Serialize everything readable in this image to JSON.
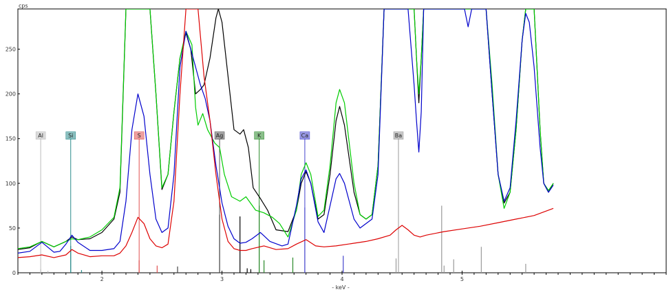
{
  "chart_data": {
    "type": "line",
    "ylabel": "cps",
    "xlabel": "- keV -",
    "xlim": [
      1.3,
      6.7
    ],
    "ylim": [
      0,
      295
    ],
    "x_ticks": [
      2,
      3,
      4,
      5
    ],
    "y_ticks": [
      0,
      50,
      100,
      150,
      200,
      250
    ],
    "grid": false,
    "series": [
      {
        "color": "#000000",
        "points": [
          [
            1.3,
            26
          ],
          [
            1.4,
            28
          ],
          [
            1.5,
            35
          ],
          [
            1.6,
            29
          ],
          [
            1.7,
            35
          ],
          [
            1.75,
            40
          ],
          [
            1.8,
            37
          ],
          [
            1.9,
            38
          ],
          [
            2.0,
            45
          ],
          [
            2.1,
            60
          ],
          [
            2.15,
            90
          ],
          [
            2.2,
            295
          ],
          [
            2.3,
            295
          ],
          [
            2.4,
            295
          ],
          [
            2.45,
            200
          ],
          [
            2.5,
            93
          ],
          [
            2.55,
            110
          ],
          [
            2.6,
            180
          ],
          [
            2.65,
            240
          ],
          [
            2.7,
            268
          ],
          [
            2.74,
            250
          ],
          [
            2.78,
            200
          ],
          [
            2.82,
            205
          ],
          [
            2.85,
            210
          ],
          [
            2.9,
            240
          ],
          [
            2.95,
            285
          ],
          [
            2.97,
            295
          ],
          [
            3.0,
            280
          ],
          [
            3.05,
            220
          ],
          [
            3.1,
            160
          ],
          [
            3.15,
            155
          ],
          [
            3.18,
            160
          ],
          [
            3.22,
            140
          ],
          [
            3.26,
            95
          ],
          [
            3.32,
            83
          ],
          [
            3.38,
            70
          ],
          [
            3.45,
            48
          ],
          [
            3.55,
            46
          ],
          [
            3.62,
            70
          ],
          [
            3.66,
            100
          ],
          [
            3.7,
            113
          ],
          [
            3.74,
            100
          ],
          [
            3.8,
            60
          ],
          [
            3.85,
            65
          ],
          [
            3.9,
            110
          ],
          [
            3.95,
            170
          ],
          [
            3.98,
            186
          ],
          [
            4.02,
            165
          ],
          [
            4.1,
            90
          ],
          [
            4.15,
            65
          ],
          [
            4.2,
            60
          ],
          [
            4.25,
            65
          ],
          [
            4.3,
            120
          ],
          [
            4.35,
            295
          ],
          [
            4.6,
            295
          ],
          [
            4.62,
            240
          ],
          [
            4.64,
            190
          ],
          [
            4.66,
            240
          ],
          [
            4.68,
            295
          ],
          [
            5.2,
            295
          ],
          [
            5.25,
            200
          ],
          [
            5.3,
            110
          ],
          [
            5.35,
            78
          ],
          [
            5.4,
            90
          ],
          [
            5.45,
            160
          ],
          [
            5.5,
            260
          ],
          [
            5.53,
            295
          ],
          [
            5.6,
            295
          ],
          [
            5.65,
            160
          ],
          [
            5.68,
            100
          ],
          [
            5.72,
            90
          ],
          [
            5.76,
            100
          ]
        ]
      },
      {
        "color": "#00cc00",
        "points": [
          [
            1.3,
            27
          ],
          [
            1.4,
            29
          ],
          [
            1.5,
            35
          ],
          [
            1.6,
            29
          ],
          [
            1.7,
            35
          ],
          [
            1.75,
            38
          ],
          [
            1.8,
            37
          ],
          [
            1.9,
            40
          ],
          [
            2.0,
            48
          ],
          [
            2.1,
            62
          ],
          [
            2.15,
            95
          ],
          [
            2.2,
            295
          ],
          [
            2.3,
            295
          ],
          [
            2.4,
            295
          ],
          [
            2.45,
            200
          ],
          [
            2.5,
            95
          ],
          [
            2.55,
            110
          ],
          [
            2.6,
            180
          ],
          [
            2.65,
            240
          ],
          [
            2.7,
            270
          ],
          [
            2.75,
            255
          ],
          [
            2.78,
            185
          ],
          [
            2.8,
            165
          ],
          [
            2.84,
            178
          ],
          [
            2.88,
            160
          ],
          [
            2.94,
            145
          ],
          [
            2.98,
            140
          ],
          [
            3.02,
            110
          ],
          [
            3.08,
            85
          ],
          [
            3.15,
            80
          ],
          [
            3.2,
            85
          ],
          [
            3.28,
            70
          ],
          [
            3.35,
            67
          ],
          [
            3.42,
            62
          ],
          [
            3.48,
            55
          ],
          [
            3.55,
            40
          ],
          [
            3.62,
            70
          ],
          [
            3.66,
            110
          ],
          [
            3.7,
            123
          ],
          [
            3.74,
            110
          ],
          [
            3.8,
            63
          ],
          [
            3.85,
            70
          ],
          [
            3.9,
            120
          ],
          [
            3.95,
            190
          ],
          [
            3.98,
            205
          ],
          [
            4.02,
            190
          ],
          [
            4.1,
            100
          ],
          [
            4.15,
            65
          ],
          [
            4.2,
            60
          ],
          [
            4.25,
            65
          ],
          [
            4.3,
            120
          ],
          [
            4.35,
            295
          ],
          [
            4.6,
            295
          ],
          [
            4.62,
            240
          ],
          [
            4.64,
            200
          ],
          [
            4.66,
            240
          ],
          [
            4.68,
            295
          ],
          [
            5.2,
            295
          ],
          [
            5.25,
            210
          ],
          [
            5.3,
            110
          ],
          [
            5.35,
            72
          ],
          [
            5.4,
            90
          ],
          [
            5.45,
            160
          ],
          [
            5.5,
            260
          ],
          [
            5.53,
            295
          ],
          [
            5.6,
            295
          ],
          [
            5.65,
            160
          ],
          [
            5.68,
            100
          ],
          [
            5.72,
            92
          ],
          [
            5.76,
            100
          ]
        ]
      },
      {
        "color": "#0000cc",
        "points": [
          [
            1.3,
            22
          ],
          [
            1.4,
            24
          ],
          [
            1.5,
            34
          ],
          [
            1.6,
            23
          ],
          [
            1.65,
            24
          ],
          [
            1.7,
            32
          ],
          [
            1.75,
            42
          ],
          [
            1.8,
            34
          ],
          [
            1.9,
            25
          ],
          [
            2.0,
            25
          ],
          [
            2.1,
            27
          ],
          [
            2.15,
            35
          ],
          [
            2.2,
            80
          ],
          [
            2.25,
            160
          ],
          [
            2.3,
            200
          ],
          [
            2.35,
            175
          ],
          [
            2.4,
            110
          ],
          [
            2.45,
            60
          ],
          [
            2.5,
            45
          ],
          [
            2.55,
            50
          ],
          [
            2.6,
            110
          ],
          [
            2.65,
            230
          ],
          [
            2.7,
            270
          ],
          [
            2.74,
            250
          ],
          [
            2.78,
            230
          ],
          [
            2.82,
            210
          ],
          [
            2.86,
            195
          ],
          [
            2.9,
            170
          ],
          [
            2.95,
            120
          ],
          [
            3.0,
            78
          ],
          [
            3.05,
            52
          ],
          [
            3.1,
            38
          ],
          [
            3.15,
            33
          ],
          [
            3.2,
            34
          ],
          [
            3.25,
            38
          ],
          [
            3.32,
            45
          ],
          [
            3.4,
            35
          ],
          [
            3.5,
            30
          ],
          [
            3.55,
            32
          ],
          [
            3.62,
            75
          ],
          [
            3.66,
            105
          ],
          [
            3.7,
            115
          ],
          [
            3.74,
            100
          ],
          [
            3.8,
            57
          ],
          [
            3.85,
            45
          ],
          [
            3.9,
            75
          ],
          [
            3.95,
            105
          ],
          [
            3.98,
            111
          ],
          [
            4.02,
            100
          ],
          [
            4.1,
            60
          ],
          [
            4.15,
            50
          ],
          [
            4.2,
            55
          ],
          [
            4.25,
            60
          ],
          [
            4.3,
            110
          ],
          [
            4.35,
            295
          ],
          [
            4.55,
            295
          ],
          [
            4.6,
            210
          ],
          [
            4.62,
            170
          ],
          [
            4.64,
            135
          ],
          [
            4.66,
            180
          ],
          [
            4.68,
            295
          ],
          [
            5.02,
            295
          ],
          [
            5.05,
            275
          ],
          [
            5.08,
            295
          ],
          [
            5.2,
            295
          ],
          [
            5.25,
            200
          ],
          [
            5.3,
            110
          ],
          [
            5.35,
            80
          ],
          [
            5.4,
            95
          ],
          [
            5.45,
            170
          ],
          [
            5.5,
            260
          ],
          [
            5.53,
            290
          ],
          [
            5.56,
            280
          ],
          [
            5.6,
            230
          ],
          [
            5.65,
            140
          ],
          [
            5.68,
            100
          ],
          [
            5.72,
            90
          ],
          [
            5.76,
            98
          ]
        ]
      },
      {
        "color": "#dd0000",
        "points": [
          [
            1.3,
            17
          ],
          [
            1.4,
            18
          ],
          [
            1.5,
            20
          ],
          [
            1.6,
            17
          ],
          [
            1.7,
            20
          ],
          [
            1.75,
            26
          ],
          [
            1.8,
            22
          ],
          [
            1.9,
            18
          ],
          [
            2.0,
            19
          ],
          [
            2.1,
            19
          ],
          [
            2.15,
            22
          ],
          [
            2.2,
            30
          ],
          [
            2.25,
            45
          ],
          [
            2.3,
            62
          ],
          [
            2.35,
            55
          ],
          [
            2.4,
            38
          ],
          [
            2.45,
            30
          ],
          [
            2.5,
            28
          ],
          [
            2.55,
            32
          ],
          [
            2.6,
            80
          ],
          [
            2.65,
            200
          ],
          [
            2.7,
            295
          ],
          [
            2.8,
            295
          ],
          [
            2.85,
            220
          ],
          [
            2.9,
            170
          ],
          [
            2.95,
            110
          ],
          [
            3.0,
            60
          ],
          [
            3.05,
            35
          ],
          [
            3.1,
            27
          ],
          [
            3.15,
            25
          ],
          [
            3.2,
            25
          ],
          [
            3.25,
            27
          ],
          [
            3.35,
            30
          ],
          [
            3.45,
            26
          ],
          [
            3.55,
            27
          ],
          [
            3.62,
            32
          ],
          [
            3.7,
            37
          ],
          [
            3.78,
            30
          ],
          [
            3.85,
            29
          ],
          [
            3.95,
            30
          ],
          [
            4.1,
            33
          ],
          [
            4.2,
            35
          ],
          [
            4.3,
            38
          ],
          [
            4.4,
            42
          ],
          [
            4.45,
            48
          ],
          [
            4.5,
            53
          ],
          [
            4.55,
            48
          ],
          [
            4.6,
            42
          ],
          [
            4.65,
            40
          ],
          [
            4.7,
            42
          ],
          [
            4.85,
            46
          ],
          [
            5.0,
            49
          ],
          [
            5.15,
            52
          ],
          [
            5.3,
            56
          ],
          [
            5.45,
            60
          ],
          [
            5.6,
            64
          ],
          [
            5.76,
            72
          ]
        ]
      }
    ],
    "markers": [
      {
        "label": "Al",
        "x": 1.49,
        "height": 150,
        "color": "#bbbbbb"
      },
      {
        "label": "Si",
        "x": 1.74,
        "height": 150,
        "color": "#2a8a8a"
      },
      {
        "label": "S",
        "x": 2.31,
        "height": 150,
        "color": "#e05050"
      },
      {
        "label": "Ag",
        "x": 2.98,
        "height": 150,
        "color": "#555555"
      },
      {
        "label": "K",
        "x": 3.31,
        "height": 150,
        "color": "#2a8a2a"
      },
      {
        "label": "Ca",
        "x": 3.69,
        "height": 150,
        "color": "#4444cc"
      },
      {
        "label": "Ba",
        "x": 4.47,
        "height": 150,
        "color": "#999999"
      }
    ],
    "line_markers": [
      {
        "x": 1.49,
        "height": 4,
        "color": "#bbbbbb"
      },
      {
        "x": 1.55,
        "height": 2,
        "color": "#bbbbbb"
      },
      {
        "x": 1.74,
        "height": 30,
        "color": "#2a8a8a"
      },
      {
        "x": 1.83,
        "height": 3,
        "color": "#2a8a8a"
      },
      {
        "x": 2.31,
        "height": 14,
        "color": "#e05050"
      },
      {
        "x": 2.46,
        "height": 8,
        "color": "#e05050"
      },
      {
        "x": 2.63,
        "height": 7,
        "color": "#444444"
      },
      {
        "x": 2.98,
        "height": 65,
        "color": "#000000"
      },
      {
        "x": 3.15,
        "height": 63,
        "color": "#000000"
      },
      {
        "x": 3.21,
        "height": 5,
        "color": "#000000"
      },
      {
        "x": 3.24,
        "height": 4,
        "color": "#000000"
      },
      {
        "x": 3.31,
        "height": 75,
        "color": "#2a8a2a"
      },
      {
        "x": 3.35,
        "height": 14,
        "color": "#2a8a2a"
      },
      {
        "x": 3.59,
        "height": 17,
        "color": "#2a8a2a"
      },
      {
        "x": 3.69,
        "height": 73,
        "color": "#4444cc"
      },
      {
        "x": 4.01,
        "height": 19,
        "color": "#4444cc"
      },
      {
        "x": 4.45,
        "height": 16,
        "color": "#999999"
      },
      {
        "x": 4.83,
        "height": 75,
        "color": "#999999"
      },
      {
        "x": 4.85,
        "height": 8,
        "color": "#999999"
      },
      {
        "x": 4.93,
        "height": 15,
        "color": "#999999"
      },
      {
        "x": 5.16,
        "height": 29,
        "color": "#999999"
      },
      {
        "x": 5.53,
        "height": 10,
        "color": "#999999"
      }
    ]
  }
}
